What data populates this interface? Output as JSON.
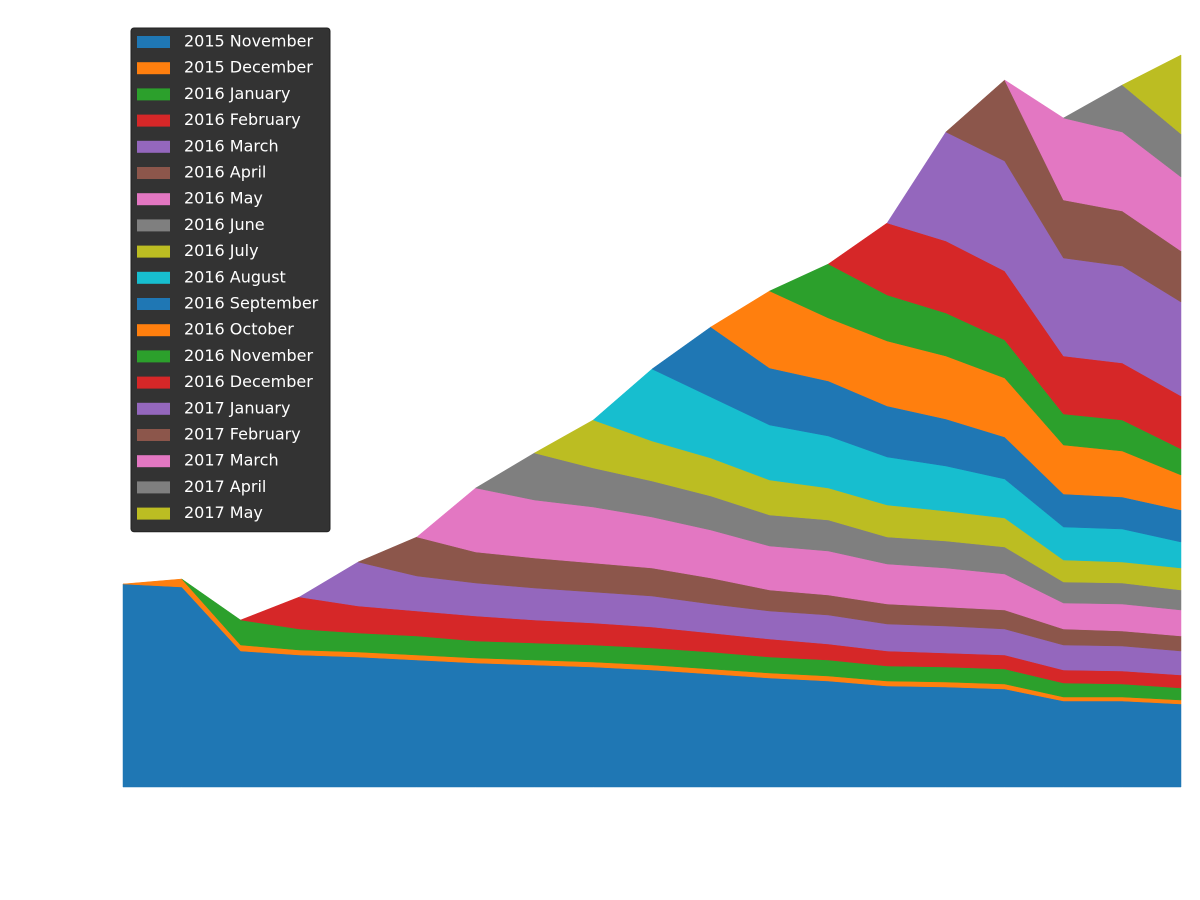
{
  "chart_data": {
    "type": "stacked_area",
    "legend": "upper left",
    "ylim": [
      0,
      787
    ],
    "series": [
      {
        "name": "2015 November",
        "color": "#1f77b4",
        "values": [
          203,
          200,
          136,
          132,
          130,
          127,
          124,
          122,
          120,
          117,
          113,
          109,
          106,
          101,
          100,
          98,
          86,
          86,
          83
        ]
      },
      {
        "name": "2015 December",
        "color": "#ff7f0e",
        "values": [
          0,
          8,
          6,
          5,
          5,
          5,
          5,
          5,
          5,
          5,
          5,
          5,
          5,
          5,
          5,
          5,
          4,
          4,
          4
        ]
      },
      {
        "name": "2016 January",
        "color": "#2ca02c",
        "values": [
          null,
          0,
          25,
          21,
          19,
          19,
          17,
          17,
          17,
          17,
          17,
          16,
          16,
          15,
          15,
          15,
          14,
          13,
          12
        ]
      },
      {
        "name": "2016 February",
        "color": "#d62728",
        "values": [
          null,
          null,
          0,
          32,
          27,
          25,
          25,
          23,
          22,
          21,
          19,
          18,
          16,
          15,
          14,
          14,
          13,
          13,
          13
        ]
      },
      {
        "name": "2016 March",
        "color": "#9467bd",
        "values": [
          null,
          null,
          null,
          0,
          44,
          35,
          33,
          32,
          31,
          31,
          29,
          28,
          29,
          27,
          27,
          26,
          25,
          25,
          24
        ]
      },
      {
        "name": "2016 April",
        "color": "#8c564b",
        "values": [
          null,
          null,
          null,
          null,
          0,
          39,
          31,
          30,
          29,
          28,
          26,
          21,
          20,
          20,
          19,
          19,
          16,
          15,
          15
        ]
      },
      {
        "name": "2016 May",
        "color": "#e377c2",
        "values": [
          null,
          null,
          null,
          null,
          null,
          0,
          64,
          58,
          56,
          51,
          48,
          44,
          44,
          40,
          39,
          36,
          26,
          27,
          26
        ]
      },
      {
        "name": "2016 June",
        "color": "#7f7f7f",
        "values": [
          null,
          null,
          null,
          null,
          null,
          null,
          0,
          47,
          39,
          36,
          34,
          31,
          31,
          27,
          27,
          27,
          21,
          21,
          20
        ]
      },
      {
        "name": "2016 July",
        "color": "#bcbd22",
        "values": [
          null,
          null,
          null,
          null,
          null,
          null,
          null,
          0,
          48,
          40,
          38,
          35,
          32,
          32,
          30,
          29,
          22,
          21,
          22
        ]
      },
      {
        "name": "2016 August",
        "color": "#17becf",
        "values": [
          null,
          null,
          null,
          null,
          null,
          null,
          null,
          null,
          0,
          72,
          61,
          55,
          52,
          48,
          45,
          39,
          33,
          33,
          26
        ]
      },
      {
        "name": "2016 September",
        "color": "#1f77b4",
        "values": [
          null,
          null,
          null,
          null,
          null,
          null,
          null,
          null,
          null,
          0,
          70,
          57,
          55,
          51,
          47,
          42,
          33,
          32,
          32
        ]
      },
      {
        "name": "2016 October",
        "color": "#ff7f0e",
        "values": [
          null,
          null,
          null,
          null,
          null,
          null,
          null,
          null,
          null,
          null,
          0,
          77,
          63,
          65,
          63,
          59,
          49,
          46,
          35
        ]
      },
      {
        "name": "2016 November",
        "color": "#2ca02c",
        "values": [
          null,
          null,
          null,
          null,
          null,
          null,
          null,
          null,
          null,
          null,
          null,
          0,
          54,
          46,
          43,
          38,
          31,
          31,
          26
        ]
      },
      {
        "name": "2016 December",
        "color": "#d62728",
        "values": [
          null,
          null,
          null,
          null,
          null,
          null,
          null,
          null,
          null,
          null,
          null,
          null,
          0,
          72,
          72,
          69,
          58,
          57,
          53
        ]
      },
      {
        "name": "2017 January",
        "color": "#9467bd",
        "values": [
          null,
          null,
          null,
          null,
          null,
          null,
          null,
          null,
          null,
          null,
          null,
          null,
          null,
          0,
          109,
          110,
          98,
          97,
          94
        ]
      },
      {
        "name": "2017 February",
        "color": "#8c564b",
        "values": [
          null,
          null,
          null,
          null,
          null,
          null,
          null,
          null,
          null,
          null,
          null,
          null,
          null,
          null,
          0,
          81,
          58,
          55,
          51
        ]
      },
      {
        "name": "2017 March",
        "color": "#e377c2",
        "values": [
          null,
          null,
          null,
          null,
          null,
          null,
          null,
          null,
          null,
          null,
          null,
          null,
          null,
          null,
          null,
          0,
          82,
          79,
          74
        ]
      },
      {
        "name": "2017 April",
        "color": "#7f7f7f",
        "values": [
          null,
          null,
          null,
          null,
          null,
          null,
          null,
          null,
          null,
          null,
          null,
          null,
          null,
          null,
          null,
          null,
          0,
          47,
          43
        ]
      },
      {
        "name": "2017 May",
        "color": "#bcbd22",
        "values": [
          null,
          null,
          null,
          null,
          null,
          null,
          null,
          null,
          null,
          null,
          null,
          null,
          null,
          null,
          null,
          null,
          null,
          0,
          79
        ]
      }
    ]
  }
}
